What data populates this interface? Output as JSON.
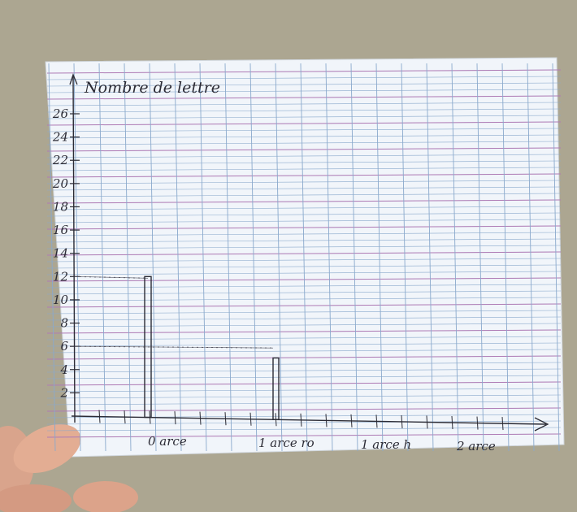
{
  "chart_data": {
    "type": "bar",
    "medium": "handwritten graph on squared notebook paper",
    "ylabel": "Nombre de lettre",
    "xlabel": "",
    "y_tick_labels": [
      "2",
      "4",
      "6",
      "8",
      "10",
      "12",
      "14",
      "16",
      "18",
      "20",
      "22",
      "24",
      "26"
    ],
    "ylim": [
      0,
      27
    ],
    "categories": [
      "0 arce",
      "1 arce ro",
      "1 arce h",
      "2 arce"
    ],
    "values": [
      12,
      5,
      null,
      null
    ],
    "reference_lines": [
      {
        "value": 12,
        "style": "dotted"
      },
      {
        "value": 6,
        "style": "dotted"
      }
    ],
    "grid": true,
    "legend": "none"
  },
  "colors": {
    "ink": "#2b2b35",
    "pencil": "#555560",
    "paper": "#f2f6fb",
    "grid_blue": "#8aa9cc",
    "grid_purple": "#b07bb5"
  }
}
